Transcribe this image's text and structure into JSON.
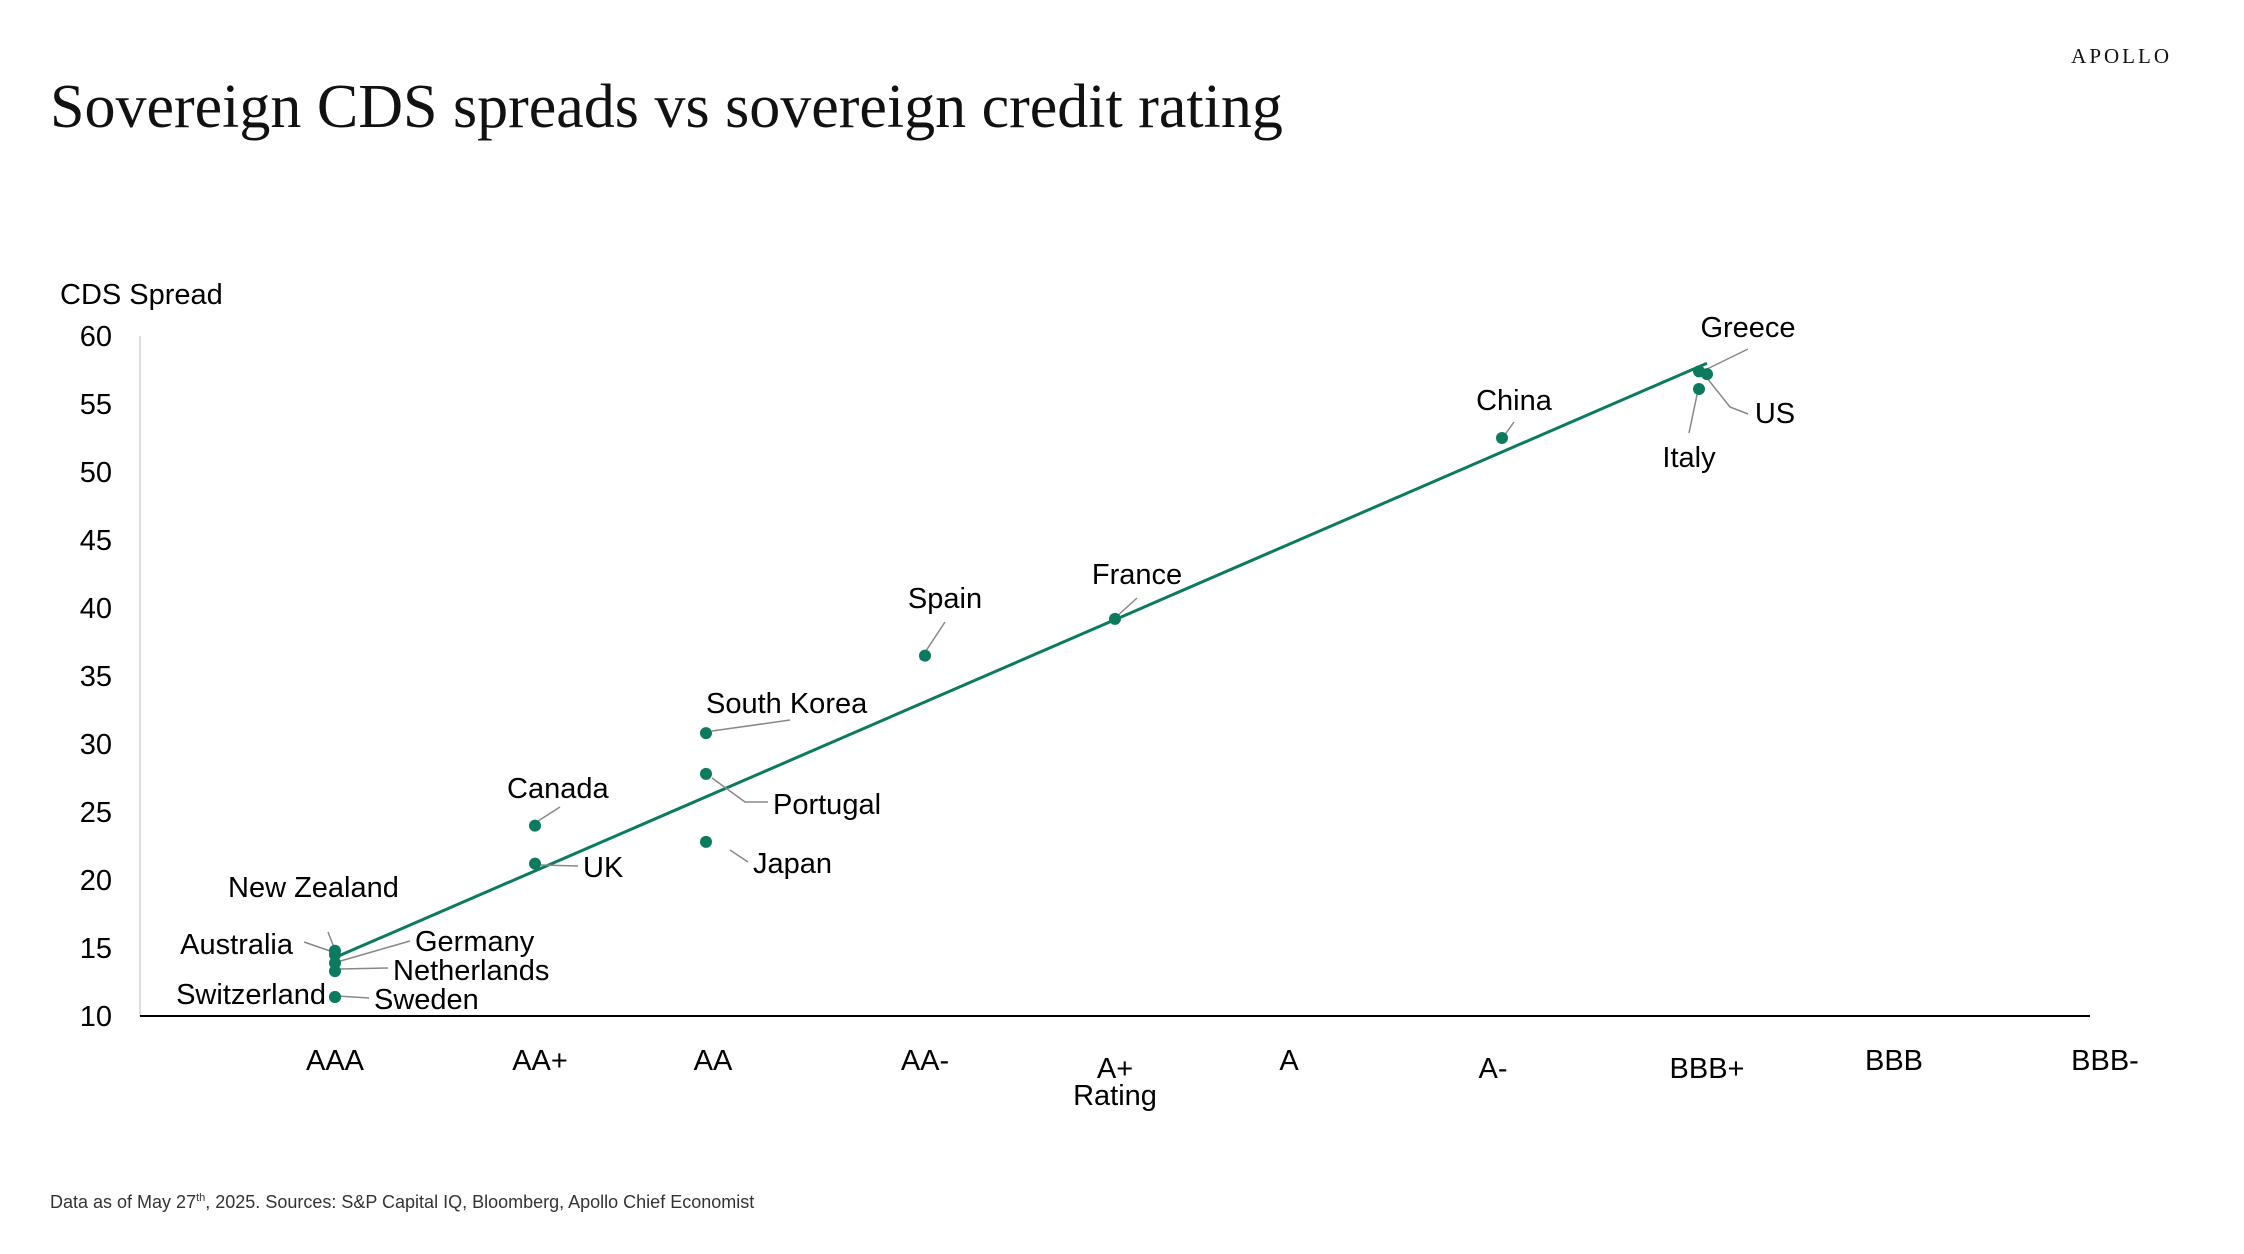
{
  "header": {
    "brand": "APOLLO",
    "title": "Sovereign CDS spreads vs sovereign credit rating"
  },
  "footnote": {
    "pre": "Data as of May 27",
    "sup": "th",
    "post": ", 2025. Sources: S&P Capital IQ, Bloomberg, Apollo Chief Economist"
  },
  "colors": {
    "series": "#0b7a5e",
    "axis": "#000000",
    "leader": "#888888"
  },
  "chart_data": {
    "type": "scatter",
    "title": "Sovereign CDS spreads vs sovereign credit rating",
    "xlabel": "Rating",
    "ylabel": "CDS Spread",
    "ylim": [
      10,
      60
    ],
    "yticks": [
      60,
      55,
      50,
      45,
      40,
      35,
      30,
      25,
      20,
      15,
      10
    ],
    "categories": [
      "AAA",
      "AA+",
      "AA",
      "AA-",
      "A+",
      "A",
      "A-",
      "BBB+",
      "BBB",
      "BBB-"
    ],
    "points": [
      {
        "label": "New Zealand",
        "x": "AAA",
        "y": 14.8
      },
      {
        "label": "Australia",
        "x": "AAA",
        "y": 14.5
      },
      {
        "label": "Germany",
        "x": "AAA",
        "y": 13.9
      },
      {
        "label": "Netherlands",
        "x": "AAA",
        "y": 13.3
      },
      {
        "label": "Switzerland",
        "x": "AAA",
        "y": 11.4
      },
      {
        "label": "Sweden",
        "x": "AAA",
        "y": 11.4
      },
      {
        "label": "Canada",
        "x": "AA+",
        "y": 24.0
      },
      {
        "label": "UK",
        "x": "AA+",
        "y": 21.2
      },
      {
        "label": "South Korea",
        "x": "AA",
        "y": 30.8
      },
      {
        "label": "Portugal",
        "x": "AA",
        "y": 27.8
      },
      {
        "label": "Japan",
        "x": "AA",
        "y": 22.8
      },
      {
        "label": "Spain",
        "x": "AA-",
        "y": 36.5
      },
      {
        "label": "France",
        "x": "A+",
        "y": 39.2
      },
      {
        "label": "China",
        "x": "A-",
        "y": 52.5
      },
      {
        "label": "Greece",
        "x": "BBB+",
        "y": 57.4
      },
      {
        "label": "US",
        "x": "BBB+",
        "y": 57.2
      },
      {
        "label": "Italy",
        "x": "BBB+",
        "y": 56.1
      }
    ],
    "trendline": {
      "from": {
        "x": "AAA",
        "y": 14.3
      },
      "to": {
        "x": "BBB+",
        "y": 58.0
      }
    }
  }
}
